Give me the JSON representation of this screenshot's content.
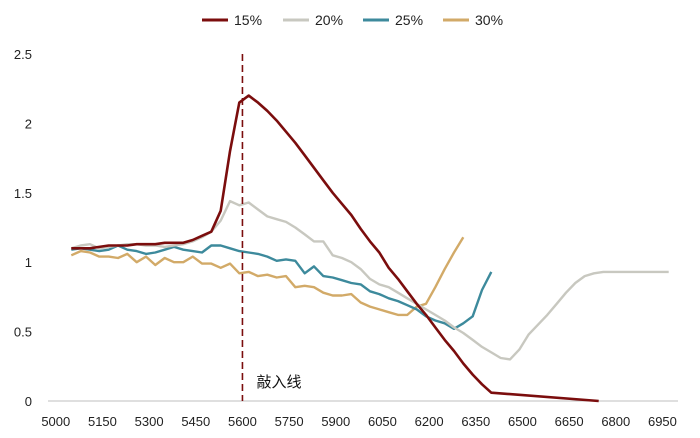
{
  "chart_data": {
    "type": "line",
    "title": "",
    "xlabel": "",
    "ylabel": "",
    "xlim": [
      4975,
      7000
    ],
    "ylim": [
      0,
      2.5
    ],
    "x_ticks": [
      5000,
      5150,
      5300,
      5450,
      5600,
      5750,
      5900,
      6050,
      6200,
      6350,
      6500,
      6650,
      6800,
      6950
    ],
    "x_tick_labels": [
      "5000",
      "5150",
      "5300",
      "5450",
      "5600",
      "5750",
      "5900",
      "6050",
      "6200",
      "6350",
      "6500",
      "6650",
      "6800",
      "6950"
    ],
    "y_ticks": [
      0,
      0.5,
      1,
      1.5,
      2,
      2.5
    ],
    "y_tick_labels": [
      "0",
      "0.5",
      "1",
      "1.5",
      "2",
      "2.5"
    ],
    "grid": false,
    "legend_position": "top-center",
    "x": [
      5050,
      5080,
      5110,
      5140,
      5170,
      5200,
      5230,
      5260,
      5290,
      5320,
      5350,
      5380,
      5410,
      5440,
      5470,
      5500,
      5530,
      5560,
      5590,
      5620,
      5650,
      5680,
      5710,
      5740,
      5770,
      5800,
      5830,
      5860,
      5890,
      5920,
      5950,
      5980,
      6010,
      6040,
      6070,
      6100,
      6130,
      6160,
      6190,
      6220,
      6250,
      6280,
      6310,
      6340,
      6370,
      6400,
      6430,
      6460,
      6490,
      6520,
      6550,
      6580,
      6610,
      6640,
      6670,
      6700,
      6730,
      6760,
      6790,
      6820,
      6850,
      6880,
      6910,
      6940,
      6970
    ],
    "series": [
      {
        "name": "15%",
        "color": "#7b0d0d",
        "values": [
          1.1,
          1.1,
          1.1,
          1.11,
          1.12,
          1.12,
          1.12,
          1.13,
          1.13,
          1.13,
          1.14,
          1.14,
          1.14,
          1.16,
          1.19,
          1.22,
          1.37,
          1.8,
          2.15,
          2.2,
          2.15,
          2.09,
          2.02,
          1.94,
          1.86,
          1.77,
          1.68,
          1.59,
          1.5,
          1.42,
          1.34,
          1.24,
          1.15,
          1.07,
          0.96,
          0.88,
          0.79,
          0.7,
          0.62,
          0.53,
          0.44,
          0.36,
          0.27,
          0.19,
          0.12,
          0.06,
          null,
          null,
          null,
          null,
          null,
          null,
          null,
          null,
          null,
          null,
          null,
          null,
          null,
          null,
          null,
          null,
          null,
          null,
          null
        ]
      },
      {
        "name": "20%",
        "color": "#c8c8c0",
        "values": [
          1.1,
          1.12,
          1.13,
          1.1,
          1.11,
          1.12,
          1.13,
          1.13,
          1.12,
          1.12,
          1.11,
          1.12,
          1.13,
          1.15,
          1.18,
          1.22,
          1.3,
          1.44,
          1.41,
          1.43,
          1.38,
          1.33,
          1.31,
          1.29,
          1.25,
          1.2,
          1.15,
          1.15,
          1.05,
          1.03,
          1.0,
          0.95,
          0.88,
          0.84,
          0.82,
          0.78,
          0.74,
          0.7,
          0.66,
          0.62,
          0.58,
          0.53,
          0.49,
          0.44,
          0.39,
          0.35,
          0.31,
          0.3,
          0.37,
          0.48,
          0.55,
          0.62,
          0.7,
          0.78,
          0.85,
          0.9,
          0.92,
          0.93,
          0.93,
          0.93,
          0.93,
          0.93,
          0.93,
          0.93,
          0.93
        ]
      },
      {
        "name": "25%",
        "color": "#3d8a9c",
        "values": [
          1.09,
          1.1,
          1.09,
          1.08,
          1.09,
          1.12,
          1.09,
          1.08,
          1.06,
          1.07,
          1.09,
          1.11,
          1.09,
          1.08,
          1.07,
          1.12,
          1.12,
          1.1,
          1.08,
          1.07,
          1.06,
          1.04,
          1.01,
          1.02,
          1.01,
          0.92,
          0.97,
          0.9,
          0.89,
          0.87,
          0.85,
          0.84,
          0.79,
          0.77,
          0.74,
          0.72,
          0.69,
          0.66,
          0.61,
          0.58,
          0.56,
          0.52,
          0.56,
          0.61,
          0.8,
          0.93,
          null,
          null,
          null,
          null,
          null,
          null,
          null,
          null,
          null,
          null,
          null,
          null,
          null,
          null,
          null,
          null,
          null,
          null,
          null
        ]
      },
      {
        "name": "30%",
        "color": "#d2aa68",
        "values": [
          1.05,
          1.08,
          1.07,
          1.04,
          1.04,
          1.03,
          1.06,
          1.0,
          1.04,
          0.98,
          1.03,
          1.0,
          1.0,
          1.04,
          0.99,
          0.99,
          0.96,
          0.99,
          0.92,
          0.93,
          0.9,
          0.91,
          0.89,
          0.9,
          0.82,
          0.83,
          0.82,
          0.78,
          0.76,
          0.76,
          0.77,
          0.71,
          0.68,
          0.66,
          0.64,
          0.62,
          0.62,
          0.68,
          0.7,
          0.82,
          0.95,
          1.07,
          1.18,
          null,
          null,
          null,
          null,
          null,
          null,
          null,
          null,
          null,
          null,
          null,
          null,
          null,
          null,
          null,
          null,
          null,
          null,
          null,
          null,
          null,
          null
        ]
      }
    ],
    "annotation": {
      "label": "敲入线",
      "x": 5600
    }
  }
}
